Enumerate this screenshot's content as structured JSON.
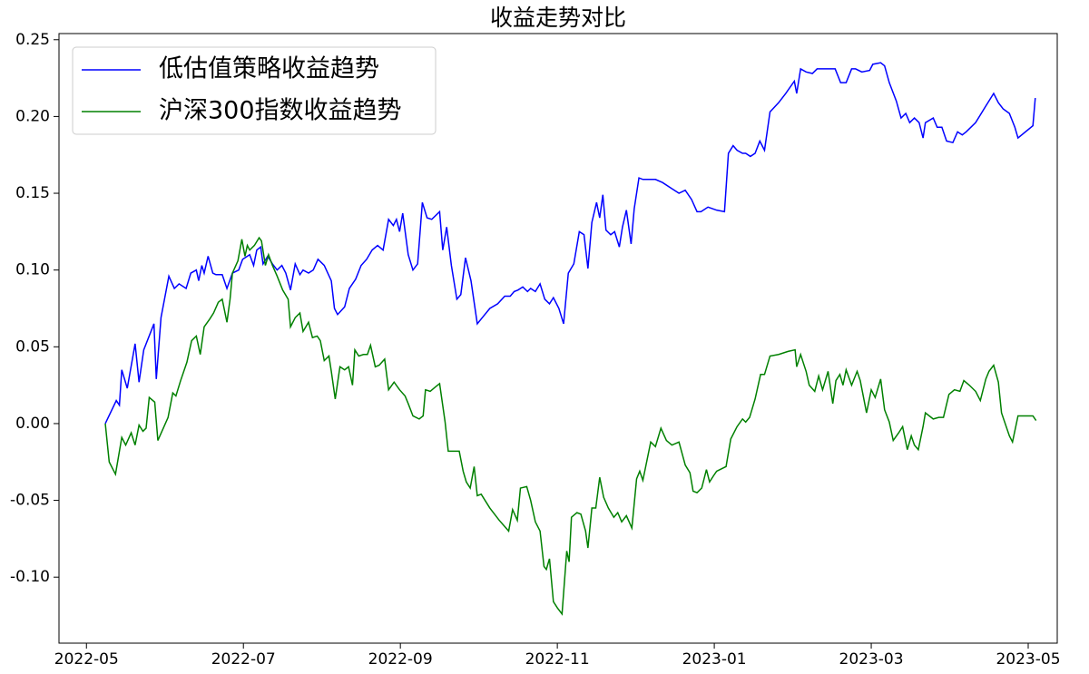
{
  "chart_data": {
    "type": "line",
    "title": "收益走势对比",
    "xlim": [
      -0.35,
      12.37
    ],
    "xticks": [
      {
        "value": 0,
        "label": "2022-05"
      },
      {
        "value": 2,
        "label": "2022-07"
      },
      {
        "value": 4,
        "label": "2022-09"
      },
      {
        "value": 6,
        "label": "2022-11"
      },
      {
        "value": 8,
        "label": "2023-01"
      },
      {
        "value": 10,
        "label": "2023-03"
      },
      {
        "value": 12,
        "label": "2023-05"
      }
    ],
    "ylim": [
      -0.143,
      0.254
    ],
    "yticks": [
      {
        "value": -0.1,
        "label": "-0.10"
      },
      -0.05,
      {
        "value": 0,
        "label": "0.00"
      },
      0.05,
      {
        "value": 0.1,
        "label": "0.10"
      },
      0.15,
      {
        "value": 0.2,
        "label": "0.20"
      },
      0.25
    ],
    "grid": false,
    "legend": "upper left",
    "series": [
      {
        "name": "低估值策略收益趋势",
        "color": "#0000ff",
        "x": [
          0.24,
          0.38,
          0.42,
          0.45,
          0.52,
          0.62,
          0.67,
          0.73,
          0.86,
          0.89,
          0.95,
          1.05,
          1.12,
          1.18,
          1.27,
          1.33,
          1.4,
          1.43,
          1.47,
          1.5,
          1.55,
          1.61,
          1.65,
          1.73,
          1.79,
          1.86,
          1.94,
          1.99,
          2.08,
          2.13,
          2.17,
          2.22,
          2.25,
          2.31,
          2.37,
          2.43,
          2.49,
          2.54,
          2.6,
          2.66,
          2.72,
          2.76,
          2.83,
          2.89,
          2.95,
          3.03,
          3.12,
          3.16,
          3.2,
          3.29,
          3.35,
          3.43,
          3.5,
          3.57,
          3.64,
          3.71,
          3.78,
          3.85,
          3.91,
          3.95,
          3.99,
          4.03,
          4.1,
          4.16,
          4.22,
          4.28,
          4.34,
          4.4,
          4.5,
          4.54,
          4.59,
          4.65,
          4.72,
          4.77,
          4.83,
          4.9,
          4.98,
          5.06,
          5.14,
          5.24,
          5.33,
          5.4,
          5.45,
          5.5,
          5.56,
          5.62,
          5.66,
          5.72,
          5.78,
          5.84,
          5.9,
          5.95,
          6.02,
          6.08,
          6.14,
          6.21,
          6.28,
          6.34,
          6.39,
          6.44,
          6.5,
          6.54,
          6.58,
          6.62,
          6.68,
          6.73,
          6.79,
          6.83,
          6.88,
          6.94,
          6.98,
          7.04,
          7.09,
          7.17,
          7.25,
          7.34,
          7.46,
          7.55,
          7.63,
          7.71,
          7.78,
          7.83,
          7.92,
          8.03,
          8.13,
          8.18,
          8.24,
          8.29,
          8.36,
          8.4,
          8.46,
          8.52,
          8.58,
          8.64,
          8.71,
          8.82,
          8.91,
          9.02,
          9.05,
          9.1,
          9.17,
          9.25,
          9.31,
          9.42,
          9.54,
          9.61,
          9.68,
          9.75,
          9.8,
          9.88,
          9.98,
          10.02,
          10.12,
          10.17,
          10.23,
          10.32,
          10.38,
          10.44,
          10.49,
          10.55,
          10.61,
          10.66,
          10.69,
          10.79,
          10.84,
          10.9,
          10.96,
          11.04,
          11.1,
          11.16,
          11.21,
          11.33,
          11.45,
          11.56,
          11.62,
          11.68,
          11.76,
          11.83,
          11.87,
          12.06,
          12.09
        ],
        "values": [
          0.0,
          0.015,
          0.012,
          0.035,
          0.023,
          0.052,
          0.027,
          0.048,
          0.065,
          0.029,
          0.069,
          0.096,
          0.088,
          0.091,
          0.088,
          0.098,
          0.1,
          0.093,
          0.103,
          0.098,
          0.109,
          0.098,
          0.097,
          0.097,
          0.088,
          0.098,
          0.1,
          0.107,
          0.11,
          0.103,
          0.113,
          0.115,
          0.104,
          0.109,
          0.104,
          0.1,
          0.103,
          0.098,
          0.087,
          0.104,
          0.097,
          0.1,
          0.098,
          0.1,
          0.107,
          0.103,
          0.093,
          0.075,
          0.071,
          0.076,
          0.088,
          0.094,
          0.103,
          0.107,
          0.113,
          0.116,
          0.113,
          0.133,
          0.129,
          0.133,
          0.125,
          0.137,
          0.11,
          0.1,
          0.104,
          0.144,
          0.134,
          0.133,
          0.138,
          0.113,
          0.128,
          0.103,
          0.081,
          0.084,
          0.108,
          0.093,
          0.065,
          0.07,
          0.075,
          0.078,
          0.083,
          0.083,
          0.086,
          0.087,
          0.089,
          0.086,
          0.088,
          0.086,
          0.091,
          0.081,
          0.078,
          0.082,
          0.075,
          0.065,
          0.098,
          0.104,
          0.125,
          0.123,
          0.101,
          0.131,
          0.144,
          0.134,
          0.149,
          0.126,
          0.123,
          0.125,
          0.115,
          0.128,
          0.139,
          0.117,
          0.14,
          0.16,
          0.159,
          0.159,
          0.159,
          0.157,
          0.153,
          0.15,
          0.152,
          0.146,
          0.138,
          0.138,
          0.141,
          0.139,
          0.138,
          0.176,
          0.181,
          0.178,
          0.176,
          0.176,
          0.174,
          0.176,
          0.184,
          0.178,
          0.203,
          0.209,
          0.215,
          0.223,
          0.215,
          0.231,
          0.229,
          0.228,
          0.231,
          0.231,
          0.231,
          0.222,
          0.222,
          0.231,
          0.231,
          0.229,
          0.23,
          0.234,
          0.235,
          0.233,
          0.222,
          0.21,
          0.199,
          0.202,
          0.196,
          0.199,
          0.196,
          0.186,
          0.196,
          0.199,
          0.193,
          0.193,
          0.184,
          0.183,
          0.19,
          0.188,
          0.19,
          0.196,
          0.206,
          0.215,
          0.209,
          0.205,
          0.202,
          0.193,
          0.186,
          0.194,
          0.212
        ]
      },
      {
        "name": "沪深300指数收益趋势",
        "color": "#008000",
        "x": [
          0.24,
          0.29,
          0.37,
          0.45,
          0.5,
          0.57,
          0.62,
          0.67,
          0.72,
          0.76,
          0.8,
          0.87,
          0.91,
          1.04,
          1.1,
          1.14,
          1.2,
          1.28,
          1.34,
          1.4,
          1.45,
          1.5,
          1.57,
          1.62,
          1.68,
          1.73,
          1.79,
          1.83,
          1.86,
          1.93,
          1.98,
          2.02,
          2.05,
          2.08,
          2.14,
          2.2,
          2.23,
          2.28,
          2.32,
          2.37,
          2.43,
          2.5,
          2.57,
          2.6,
          2.66,
          2.72,
          2.76,
          2.83,
          2.88,
          2.94,
          2.98,
          3.03,
          3.09,
          3.12,
          3.17,
          3.23,
          3.29,
          3.34,
          3.39,
          3.42,
          3.47,
          3.53,
          3.58,
          3.62,
          3.68,
          3.73,
          3.8,
          3.85,
          3.92,
          3.99,
          4.06,
          4.1,
          4.16,
          4.24,
          4.29,
          4.32,
          4.38,
          4.45,
          4.5,
          4.57,
          4.61,
          4.75,
          4.8,
          4.84,
          4.89,
          4.94,
          4.98,
          5.03,
          5.14,
          5.26,
          5.38,
          5.43,
          5.49,
          5.53,
          5.61,
          5.66,
          5.72,
          5.78,
          5.83,
          5.86,
          5.9,
          5.95,
          6.0,
          6.06,
          6.12,
          6.15,
          6.18,
          6.25,
          6.3,
          6.36,
          6.39,
          6.44,
          6.49,
          6.54,
          6.59,
          6.65,
          6.72,
          6.77,
          6.82,
          6.88,
          6.95,
          7.01,
          7.05,
          7.09,
          7.13,
          7.19,
          7.25,
          7.32,
          7.39,
          7.46,
          7.55,
          7.63,
          7.69,
          7.73,
          7.78,
          7.84,
          7.9,
          7.94,
          7.99,
          8.03,
          8.15,
          8.21,
          8.29,
          8.36,
          8.4,
          8.45,
          8.52,
          8.59,
          8.64,
          8.71,
          8.82,
          8.94,
          9.03,
          9.05,
          9.1,
          9.17,
          9.21,
          9.28,
          9.33,
          9.38,
          9.45,
          9.51,
          9.55,
          9.6,
          9.64,
          9.68,
          9.75,
          9.82,
          9.86,
          9.94,
          10.0,
          10.05,
          10.12,
          10.17,
          10.23,
          10.28,
          10.35,
          10.4,
          10.46,
          10.51,
          10.55,
          10.6,
          10.66,
          10.69,
          10.79,
          10.86,
          10.92,
          10.99,
          11.06,
          11.13,
          11.18,
          11.25,
          11.33,
          11.39,
          11.46,
          11.5,
          11.56,
          11.62,
          11.66,
          11.76,
          11.8,
          11.87,
          12.06,
          12.1
        ],
        "values": [
          0.0,
          -0.025,
          -0.033,
          -0.009,
          -0.014,
          -0.006,
          -0.014,
          -0.001,
          -0.005,
          -0.003,
          0.017,
          0.014,
          -0.011,
          0.004,
          0.02,
          0.018,
          0.028,
          0.04,
          0.054,
          0.057,
          0.045,
          0.063,
          0.068,
          0.072,
          0.079,
          0.081,
          0.066,
          0.081,
          0.098,
          0.106,
          0.12,
          0.109,
          0.116,
          0.113,
          0.116,
          0.121,
          0.119,
          0.103,
          0.11,
          0.103,
          0.096,
          0.087,
          0.081,
          0.063,
          0.069,
          0.072,
          0.06,
          0.066,
          0.056,
          0.057,
          0.054,
          0.041,
          0.044,
          0.034,
          0.016,
          0.037,
          0.035,
          0.037,
          0.025,
          0.048,
          0.044,
          0.045,
          0.045,
          0.051,
          0.037,
          0.038,
          0.042,
          0.022,
          0.027,
          0.022,
          0.018,
          0.013,
          0.005,
          0.003,
          0.005,
          0.022,
          0.021,
          0.024,
          0.026,
          0.001,
          -0.018,
          -0.018,
          -0.031,
          -0.038,
          -0.042,
          -0.028,
          -0.047,
          -0.046,
          -0.055,
          -0.063,
          -0.07,
          -0.056,
          -0.063,
          -0.042,
          -0.041,
          -0.05,
          -0.064,
          -0.07,
          -0.093,
          -0.095,
          -0.088,
          -0.116,
          -0.12,
          -0.124,
          -0.083,
          -0.09,
          -0.061,
          -0.058,
          -0.059,
          -0.07,
          -0.081,
          -0.055,
          -0.055,
          -0.035,
          -0.048,
          -0.055,
          -0.061,
          -0.058,
          -0.064,
          -0.06,
          -0.068,
          -0.036,
          -0.031,
          -0.037,
          -0.027,
          -0.012,
          -0.015,
          -0.003,
          -0.011,
          -0.014,
          -0.012,
          -0.027,
          -0.032,
          -0.044,
          -0.045,
          -0.042,
          -0.03,
          -0.038,
          -0.034,
          -0.031,
          -0.028,
          -0.01,
          -0.002,
          0.003,
          0.001,
          0.004,
          0.016,
          0.032,
          0.032,
          0.044,
          0.045,
          0.047,
          0.048,
          0.037,
          0.045,
          0.034,
          0.025,
          0.021,
          0.031,
          0.022,
          0.034,
          0.013,
          0.028,
          0.032,
          0.025,
          0.035,
          0.025,
          0.034,
          0.028,
          0.007,
          0.022,
          0.017,
          0.029,
          0.009,
          0.001,
          -0.011,
          -0.006,
          -0.002,
          -0.017,
          -0.008,
          -0.014,
          -0.017,
          -0.002,
          0.007,
          0.003,
          0.004,
          0.004,
          0.019,
          0.022,
          0.021,
          0.028,
          0.025,
          0.021,
          0.015,
          0.029,
          0.034,
          0.038,
          0.027,
          0.007,
          -0.008,
          -0.012,
          0.005,
          0.005,
          0.002
        ]
      }
    ]
  }
}
